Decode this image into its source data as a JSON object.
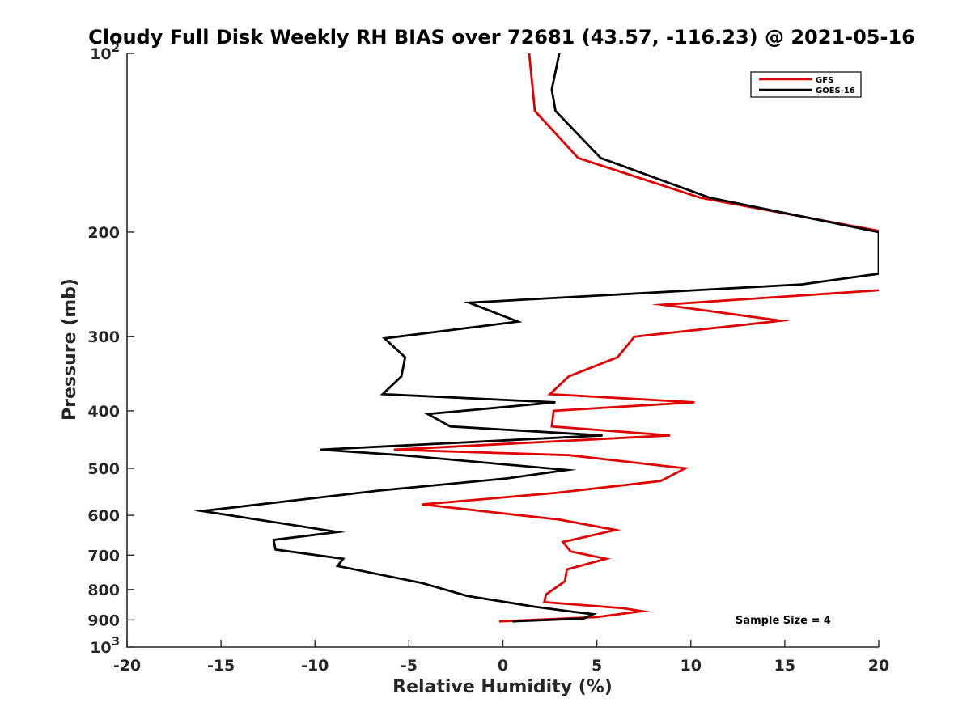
{
  "chart_data": {
    "type": "line",
    "title": "Cloudy Full Disk Weekly RH BIAS over 72681 (43.57, -116.23) @ 2021-05-16",
    "xlabel": "Relative Humidity (%)",
    "ylabel": "Pressure (mb)",
    "xlim": [
      -20,
      20
    ],
    "ylim": [
      100,
      1000
    ],
    "y_scale": "log",
    "y_reversed": true,
    "x_ticks": [
      -20,
      -15,
      -10,
      -5,
      0,
      5,
      10,
      15,
      20
    ],
    "x_tick_labels": [
      "-20",
      "-15",
      "-10",
      "-5",
      "0",
      "5",
      "10",
      "15",
      "20"
    ],
    "y_ticks": [
      200,
      300,
      400,
      500,
      600,
      700,
      800,
      900
    ],
    "y_tick_labels": [
      "200",
      "300",
      "400",
      "500",
      "600",
      "700",
      "800",
      "900"
    ],
    "y_tick_decades": [
      {
        "value": 100,
        "base": "10",
        "exp": "2"
      },
      {
        "value": 1000,
        "base": "10",
        "exp": "3"
      }
    ],
    "grid": false,
    "legend_position": "top-right",
    "series": [
      {
        "name": "GFS",
        "color": "#e00000",
        "points": [
          {
            "x": 1.4,
            "p": 100
          },
          {
            "x": 1.7,
            "p": 125
          },
          {
            "x": 4.0,
            "p": 150
          },
          {
            "x": 10.5,
            "p": 175
          },
          {
            "x": 20.0,
            "p": 199
          },
          {
            "x": 20.5,
            "p": 250
          },
          {
            "x": 8.5,
            "p": 265
          },
          {
            "x": 14.8,
            "p": 282
          },
          {
            "x": 7.0,
            "p": 300
          },
          {
            "x": 6.1,
            "p": 325
          },
          {
            "x": 3.5,
            "p": 350
          },
          {
            "x": 2.5,
            "p": 375
          },
          {
            "x": 10.2,
            "p": 387
          },
          {
            "x": 2.7,
            "p": 400
          },
          {
            "x": 2.6,
            "p": 425
          },
          {
            "x": 8.9,
            "p": 440
          },
          {
            "x": -5.8,
            "p": 465
          },
          {
            "x": 3.5,
            "p": 475
          },
          {
            "x": 9.7,
            "p": 500
          },
          {
            "x": 8.4,
            "p": 525
          },
          {
            "x": 2.8,
            "p": 550
          },
          {
            "x": -4.3,
            "p": 575
          },
          {
            "x": 3.0,
            "p": 610
          },
          {
            "x": 6.0,
            "p": 635
          },
          {
            "x": 3.2,
            "p": 665
          },
          {
            "x": 3.6,
            "p": 690
          },
          {
            "x": 5.5,
            "p": 710
          },
          {
            "x": 3.4,
            "p": 740
          },
          {
            "x": 3.3,
            "p": 775
          },
          {
            "x": 2.3,
            "p": 815
          },
          {
            "x": 2.2,
            "p": 840
          },
          {
            "x": 6.4,
            "p": 860
          },
          {
            "x": 7.4,
            "p": 870
          },
          {
            "x": 5.0,
            "p": 890
          },
          {
            "x": -0.2,
            "p": 905
          }
        ]
      },
      {
        "name": "GOES-16",
        "color": "#000000",
        "points": [
          {
            "x": 3.0,
            "p": 100
          },
          {
            "x": 2.6,
            "p": 115
          },
          {
            "x": 2.8,
            "p": 125
          },
          {
            "x": 5.2,
            "p": 150
          },
          {
            "x": 11.0,
            "p": 175
          },
          {
            "x": 20.0,
            "p": 200
          },
          {
            "x": 20.0,
            "p": 235
          },
          {
            "x": 15.9,
            "p": 245
          },
          {
            "x": -1.8,
            "p": 263
          },
          {
            "x": 0.8,
            "p": 283
          },
          {
            "x": -6.3,
            "p": 302
          },
          {
            "x": -5.2,
            "p": 325
          },
          {
            "x": -5.4,
            "p": 350
          },
          {
            "x": -6.4,
            "p": 375
          },
          {
            "x": 2.8,
            "p": 387
          },
          {
            "x": -4.0,
            "p": 405
          },
          {
            "x": -2.8,
            "p": 425
          },
          {
            "x": 5.3,
            "p": 440
          },
          {
            "x": -9.7,
            "p": 465
          },
          {
            "x": -5.4,
            "p": 475
          },
          {
            "x": 3.4,
            "p": 503
          },
          {
            "x": 0.2,
            "p": 520
          },
          {
            "x": -6.6,
            "p": 545
          },
          {
            "x": -16.0,
            "p": 590
          },
          {
            "x": -8.8,
            "p": 640
          },
          {
            "x": -12.2,
            "p": 660
          },
          {
            "x": -12.1,
            "p": 685
          },
          {
            "x": -8.5,
            "p": 710
          },
          {
            "x": -8.8,
            "p": 730
          },
          {
            "x": -4.3,
            "p": 780
          },
          {
            "x": -1.9,
            "p": 820
          },
          {
            "x": 1.7,
            "p": 855
          },
          {
            "x": 3.5,
            "p": 870
          },
          {
            "x": 4.8,
            "p": 880
          },
          {
            "x": 4.3,
            "p": 895
          },
          {
            "x": 0.5,
            "p": 905
          }
        ]
      }
    ],
    "annotations": [
      {
        "text": "Sample Size = 4"
      }
    ]
  }
}
